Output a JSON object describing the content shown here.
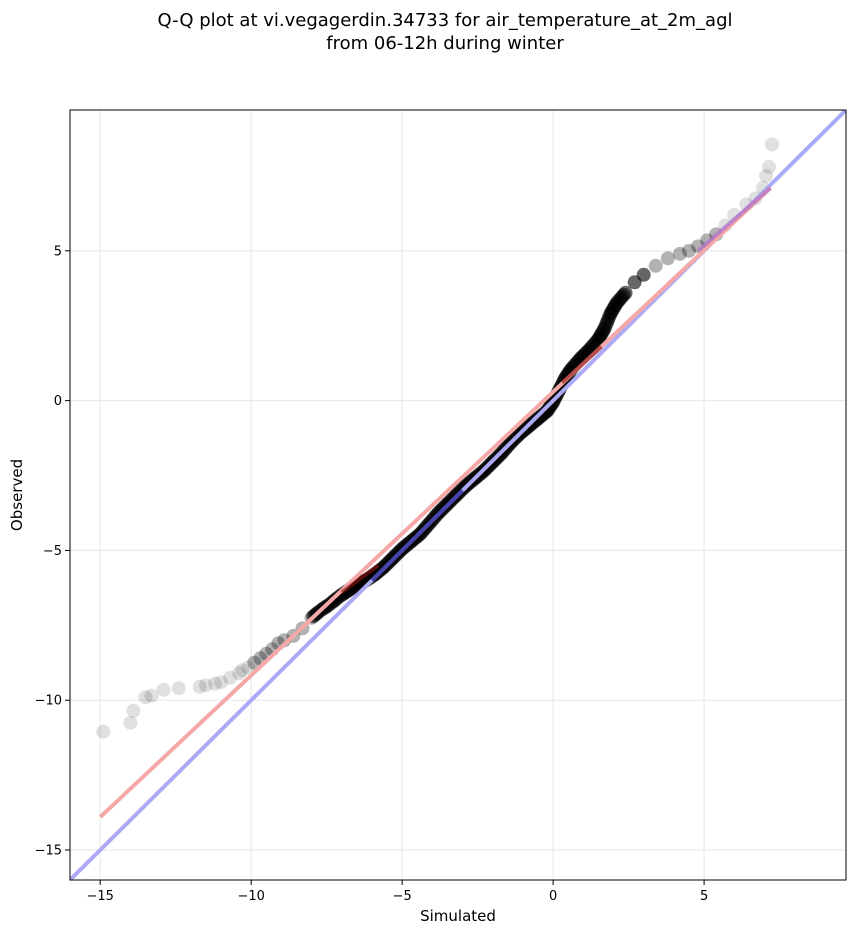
{
  "chart_data": {
    "type": "scatter",
    "title_line1": "Q-Q plot at vi.vegagerdin.34733 for air_temperature_at_2m_agl",
    "title_line2": "from 06-12h during winter",
    "xlabel": "Simulated",
    "ylabel": "Observed",
    "xlim": [
      -16.0,
      9.7
    ],
    "ylim": [
      -16.0,
      9.7
    ],
    "x_ticks": [
      -15,
      -10,
      -5,
      0,
      5
    ],
    "y_ticks": [
      -15,
      -10,
      -5,
      0,
      5
    ],
    "x_tick_labels": [
      "−15",
      "−10",
      "−5",
      "0",
      "5"
    ],
    "y_tick_labels": [
      "−15",
      "−10",
      "−5",
      "0",
      "5"
    ],
    "grid": true,
    "colors": {
      "points": "#000000",
      "identity_line": "#aaaaf5",
      "fit_line": "#f5a8a8",
      "highlight_blue": "#1a1a8c",
      "highlight_red": "#8c1010",
      "highlight_purple": "#b070c8"
    },
    "series": [
      {
        "kind": "quantile_points",
        "points": [
          [
            -14.9,
            -11.05
          ],
          [
            -14.0,
            -10.75
          ],
          [
            -13.9,
            -10.35
          ],
          [
            -13.5,
            -9.9
          ],
          [
            -13.3,
            -9.85
          ],
          [
            -12.9,
            -9.65
          ],
          [
            -12.4,
            -9.6
          ],
          [
            -11.7,
            -9.55
          ],
          [
            -11.5,
            -9.5
          ],
          [
            -11.2,
            -9.45
          ],
          [
            -11.0,
            -9.4
          ],
          [
            -10.7,
            -9.25
          ],
          [
            -10.4,
            -9.1
          ],
          [
            -10.3,
            -9.0
          ],
          [
            -10.1,
            -8.9
          ],
          [
            -9.9,
            -8.75
          ],
          [
            -9.7,
            -8.6
          ],
          [
            -9.5,
            -8.45
          ],
          [
            -9.3,
            -8.3
          ],
          [
            -9.1,
            -8.1
          ],
          [
            -8.9,
            -8.0
          ],
          [
            -8.6,
            -7.85
          ],
          [
            -8.3,
            -7.6
          ],
          [
            -8.0,
            -7.25
          ],
          [
            -7.7,
            -7.0
          ],
          [
            -7.4,
            -6.8
          ],
          [
            -7.1,
            -6.55
          ],
          [
            -6.8,
            -6.35
          ],
          [
            -6.5,
            -6.15
          ],
          [
            -6.2,
            -6.0
          ],
          [
            -5.9,
            -5.8
          ],
          [
            -5.6,
            -5.55
          ],
          [
            -5.3,
            -5.25
          ],
          [
            -5.0,
            -4.95
          ],
          [
            -4.7,
            -4.7
          ],
          [
            -4.4,
            -4.45
          ],
          [
            -4.1,
            -4.1
          ],
          [
            -3.8,
            -3.75
          ],
          [
            -3.5,
            -3.45
          ],
          [
            -3.2,
            -3.15
          ],
          [
            -2.9,
            -2.85
          ],
          [
            -2.6,
            -2.6
          ],
          [
            -2.3,
            -2.35
          ],
          [
            -2.0,
            -2.05
          ],
          [
            -1.7,
            -1.75
          ],
          [
            -1.4,
            -1.4
          ],
          [
            -1.1,
            -1.1
          ],
          [
            -0.8,
            -0.85
          ],
          [
            -0.5,
            -0.6
          ],
          [
            -0.2,
            -0.35
          ],
          [
            0.0,
            -0.05
          ],
          [
            0.2,
            0.35
          ],
          [
            0.4,
            0.75
          ],
          [
            0.6,
            1.05
          ],
          [
            0.9,
            1.4
          ],
          [
            1.2,
            1.7
          ],
          [
            1.5,
            2.05
          ],
          [
            1.7,
            2.4
          ],
          [
            1.9,
            2.9
          ],
          [
            2.1,
            3.25
          ],
          [
            2.4,
            3.6
          ],
          [
            2.7,
            3.95
          ],
          [
            3.0,
            4.2
          ],
          [
            3.4,
            4.5
          ],
          [
            3.8,
            4.75
          ],
          [
            4.2,
            4.9
          ],
          [
            4.5,
            5.0
          ],
          [
            4.8,
            5.15
          ],
          [
            5.1,
            5.35
          ],
          [
            5.4,
            5.55
          ],
          [
            5.7,
            5.85
          ],
          [
            6.0,
            6.2
          ],
          [
            6.4,
            6.55
          ],
          [
            6.7,
            6.75
          ],
          [
            6.95,
            7.1
          ],
          [
            7.05,
            7.5
          ],
          [
            7.15,
            7.8
          ],
          [
            7.25,
            8.55
          ]
        ]
      },
      {
        "kind": "identity_line",
        "from": [
          -16.0,
          -16.0
        ],
        "to": [
          9.7,
          9.7
        ]
      },
      {
        "kind": "fit_line",
        "from": [
          -15.0,
          -13.9
        ],
        "to": [
          7.2,
          7.1
        ]
      }
    ]
  }
}
